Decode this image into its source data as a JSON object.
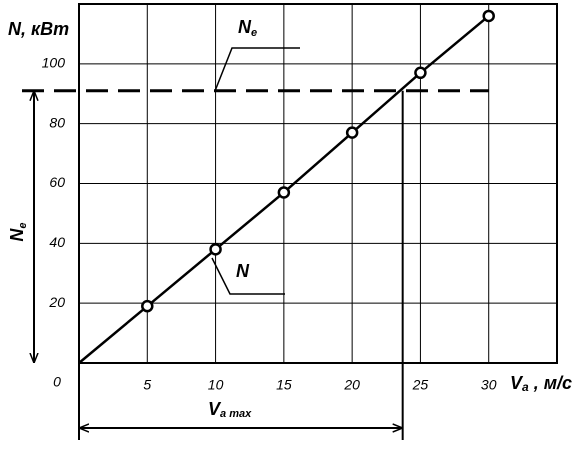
{
  "chart_data": {
    "type": "line",
    "y_label": "N, кВт",
    "x_label": {
      "main": "V",
      "sub": "a",
      "unit": " , м/с"
    },
    "x": [
      0,
      5,
      10,
      15,
      20,
      25,
      30
    ],
    "series": [
      {
        "name": "N",
        "color": "#000000",
        "values": [
          0,
          19,
          38,
          57,
          77,
          97,
          116
        ]
      }
    ],
    "ne_level": 91,
    "ne_label": {
      "main": "N",
      "sub": "e"
    },
    "v_max": 23.7,
    "v_max_label": {
      "main": "V",
      "sub": "a max"
    },
    "xlim": [
      0,
      35
    ],
    "ylim": [
      0,
      120
    ],
    "xticks": [
      0,
      5,
      10,
      15,
      20,
      25,
      30
    ],
    "yticks": [
      20,
      40,
      60,
      80,
      100
    ],
    "grid": true
  }
}
